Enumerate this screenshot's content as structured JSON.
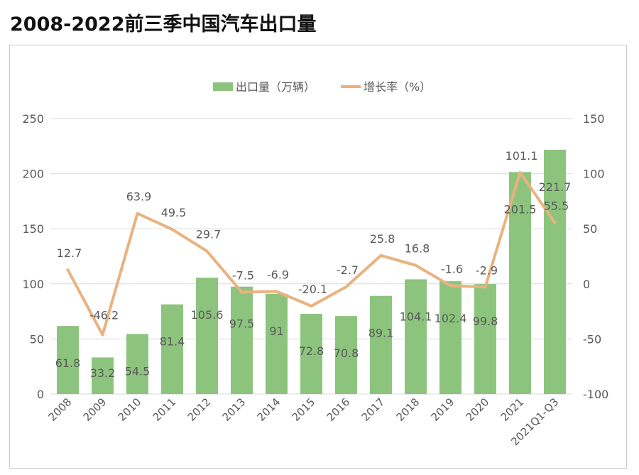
{
  "title": "2008-2022前三季中国汽车出口量",
  "colors": {
    "bar": "#8cc47e",
    "line": "#eab27f",
    "grid": "#d9d9d9",
    "text": "#595959"
  },
  "chart_data": {
    "type": "bar",
    "title": "2008-2022前三季中国汽车出口量",
    "categories": [
      "2008",
      "2009",
      "2010",
      "2011",
      "2012",
      "2013",
      "2014",
      "2015",
      "2016",
      "2017",
      "2018",
      "2019",
      "2020",
      "2021",
      "2021Q1-Q3"
    ],
    "series": [
      {
        "name": "出口量（万辆）",
        "type": "bar",
        "axis": "left",
        "values": [
          61.8,
          33.2,
          54.5,
          81.4,
          105.6,
          97.5,
          91,
          72.8,
          70.8,
          89.1,
          104.1,
          102.4,
          99.8,
          201.5,
          221.7
        ],
        "value_labels": [
          "61.8",
          "33.2",
          "54.5",
          "81.4",
          "105.6",
          "97.5",
          "91",
          "72.8",
          "70.8",
          "89.1",
          "104.1",
          "102.4",
          "99.8",
          "201.5",
          "221.7"
        ]
      },
      {
        "name": "增长率（%）",
        "type": "line",
        "axis": "right",
        "values": [
          12.7,
          -46.2,
          63.9,
          49.5,
          29.7,
          -7.5,
          -6.9,
          -20.1,
          -2.7,
          25.8,
          16.8,
          -1.6,
          -2.9,
          101.1,
          55.5
        ],
        "value_labels": [
          "12.7",
          "-46.2",
          "63.9",
          "49.5",
          "29.7",
          "-7.5",
          "-6.9",
          "-20.1",
          "-2.7",
          "25.8",
          "16.8",
          "-1.6",
          "-2.9",
          "101.1",
          "55.5"
        ]
      }
    ],
    "y_left": {
      "range": [
        0,
        250
      ],
      "ticks": [
        0,
        50,
        100,
        150,
        200,
        250
      ],
      "tick_labels": [
        "0",
        "50",
        "100",
        "150",
        "200",
        "250"
      ]
    },
    "y_right": {
      "range": [
        -100,
        150
      ],
      "ticks": [
        -100,
        -50,
        0,
        50,
        100,
        150
      ],
      "tick_labels": [
        "-100",
        "-50",
        "0",
        "50",
        "100",
        "150"
      ]
    },
    "grid": true,
    "legend_position": "top"
  }
}
